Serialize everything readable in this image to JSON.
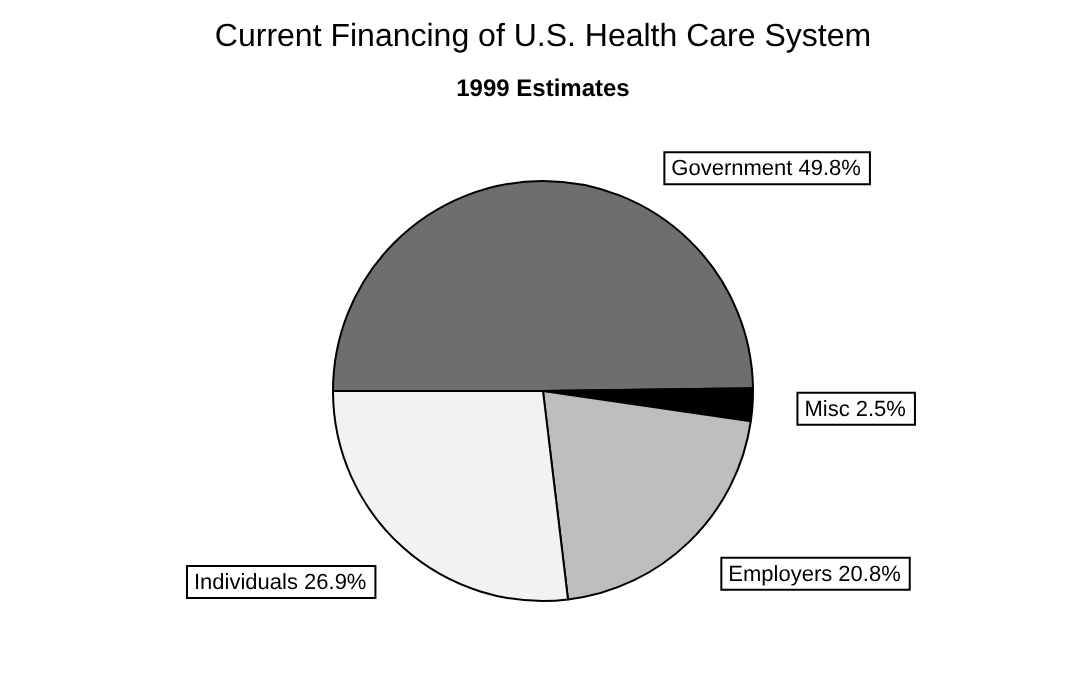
{
  "chart_data": {
    "type": "pie",
    "title": "Current Financing of U.S. Health Care System",
    "subtitle": "1999 Estimates",
    "categories": [
      "Government",
      "Misc",
      "Employers",
      "Individuals"
    ],
    "values": [
      49.8,
      2.5,
      20.8,
      26.9
    ],
    "colors": [
      "#6e6e6e",
      "#000000",
      "#bdbdbd",
      "#f2f2f2"
    ],
    "value_labels": [
      "49.8%",
      "2.5%",
      "20.8%",
      "26.9%"
    ],
    "legend": false
  }
}
